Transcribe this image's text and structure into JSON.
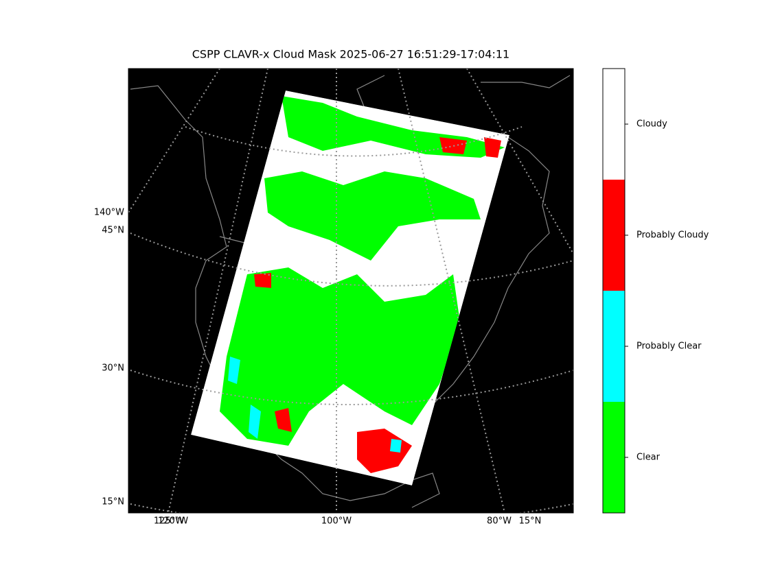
{
  "title": "CSPP CLAVR-x Cloud Mask 2025-06-27 16:51:29-17:04:11",
  "map": {
    "left_labels": [
      "140°W",
      "45°N",
      "30°N",
      "15°N"
    ],
    "bottom_labels": [
      "125°W",
      "120°W",
      "100°W",
      "80°W",
      "15°N"
    ]
  },
  "colorbar": {
    "classes": [
      {
        "label": "Cloudy",
        "color": "#ffffff"
      },
      {
        "label": "Probably Cloudy",
        "color": "#ff0000"
      },
      {
        "label": "Probably Clear",
        "color": "#00ffff"
      },
      {
        "label": "Clear",
        "color": "#00ff00"
      }
    ]
  }
}
